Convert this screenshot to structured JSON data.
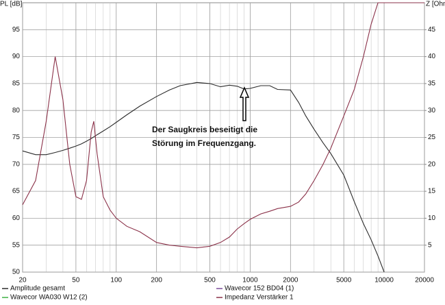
{
  "chart_data": {
    "type": "line",
    "ylabel": "PL [dB]",
    "y2label": "Z [Ohm",
    "annotation": [
      "Der Saugkreis beseitigt die",
      "Störung im Frequenzgang."
    ],
    "xscale": "log",
    "grid": true,
    "minor_grid": true,
    "legend": "bottom",
    "xlim": [
      20,
      20000
    ],
    "xticks": [
      20,
      50,
      100,
      200,
      500,
      1000,
      2000,
      5000,
      10000,
      20000
    ],
    "ylim": [
      50,
      100
    ],
    "yticks": [
      50,
      55,
      60,
      65,
      70,
      75,
      80,
      85,
      90,
      95
    ],
    "y2lim": [
      0,
      50
    ],
    "y2ticks": [
      5,
      10,
      15,
      20,
      25,
      30,
      35,
      40,
      45
    ],
    "x": [
      20,
      25,
      30,
      35,
      40,
      45,
      50,
      55,
      60,
      65,
      68,
      72,
      80,
      90,
      100,
      120,
      150,
      200,
      250,
      300,
      400,
      500,
      600,
      700,
      800,
      900,
      1000,
      1200,
      1400,
      1600,
      2000,
      2300,
      2600,
      3000,
      3500,
      4000,
      5000,
      6000,
      7000,
      8000,
      9000,
      10000,
      12000,
      15000,
      20000
    ],
    "series": [
      {
        "name": "Amplitude gesamt",
        "color": "#2a2a2a",
        "values": [
          72.5,
          71.8,
          71.8,
          72.2,
          72.6,
          73,
          73.4,
          73.8,
          74.3,
          74.8,
          75.1,
          75.5,
          76.2,
          77,
          77.8,
          79.2,
          80.8,
          82.6,
          83.8,
          84.6,
          85.2,
          85,
          84.4,
          84.7,
          84.5,
          84,
          84.1,
          84.6,
          84.6,
          83.9,
          83.8,
          81.5,
          79,
          76.5,
          74,
          72,
          68,
          63,
          59,
          56,
          53,
          50,
          null,
          null,
          null
        ]
      },
      {
        "name": "Wavecor WA030 W12 (2)",
        "color": "#3cb043",
        "values": [
          null,
          null,
          null,
          null,
          null,
          null,
          null,
          null,
          null,
          null,
          null,
          null,
          null,
          null,
          null,
          null,
          null,
          null,
          null,
          null,
          null,
          null,
          null,
          null,
          null,
          null,
          null,
          null,
          null,
          null,
          null,
          null,
          null,
          null,
          null,
          null,
          null,
          null,
          null,
          null,
          null,
          null,
          null,
          null,
          null
        ]
      },
      {
        "name": "Wavecor 152 BD04 (1)",
        "color": "#7a4a9a",
        "values": [
          null,
          null,
          null,
          null,
          null,
          null,
          null,
          null,
          null,
          null,
          null,
          null,
          null,
          null,
          null,
          null,
          null,
          null,
          null,
          null,
          null,
          null,
          null,
          null,
          null,
          null,
          null,
          null,
          null,
          null,
          null,
          null,
          null,
          null,
          null,
          null,
          null,
          null,
          null,
          null,
          null,
          null,
          null,
          null,
          null
        ]
      },
      {
        "name": "Impedanz Verstärker 1",
        "color": "#8a3048",
        "axis": "y2",
        "values": [
          12.5,
          17,
          28,
          40,
          32,
          20,
          14,
          13.5,
          17,
          26,
          28,
          22,
          14,
          11.5,
          10,
          8.5,
          7.5,
          5.5,
          5,
          4.8,
          4.5,
          4.8,
          5.5,
          6.5,
          8,
          9,
          9.8,
          10.8,
          11.3,
          11.8,
          12.2,
          13,
          14.5,
          17,
          20,
          23,
          29,
          34,
          40,
          46,
          50,
          50,
          50,
          50,
          50
        ]
      }
    ]
  }
}
